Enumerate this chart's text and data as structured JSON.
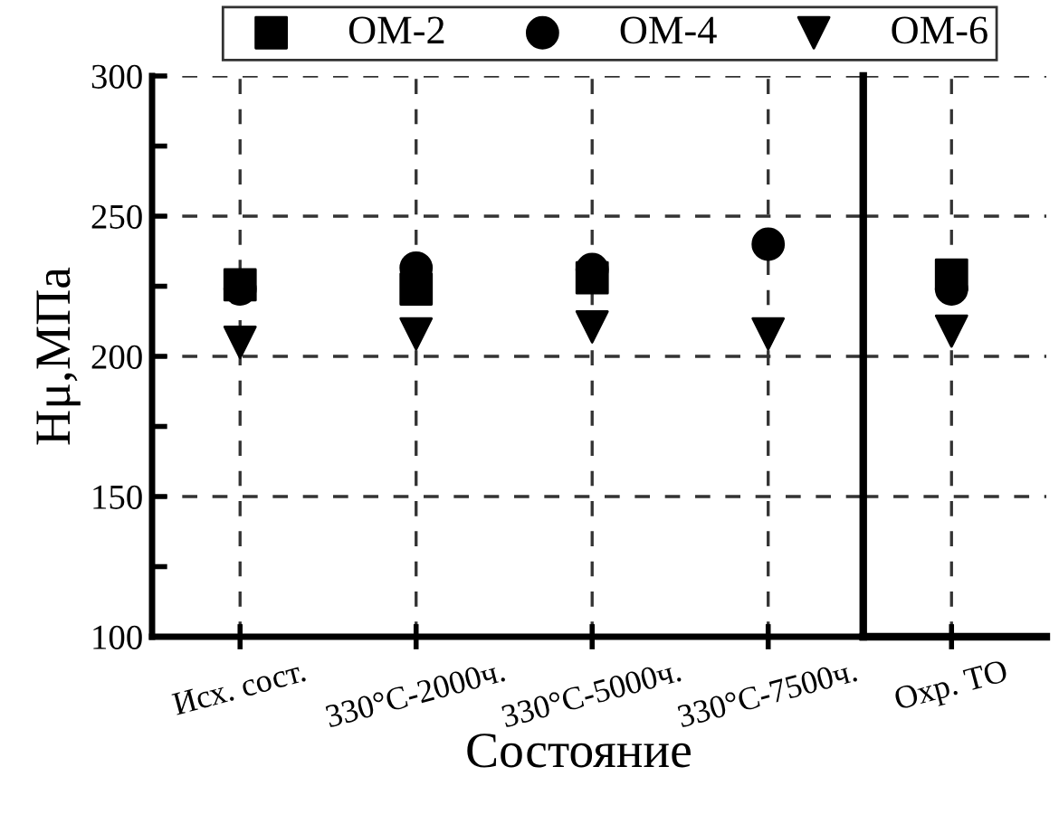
{
  "chart_data": [
    {
      "type": "scatter",
      "xlabel": "Состояние",
      "ylabel": "Hμ,МПа",
      "categories": [
        "Исх. сост.",
        "330°C-2000ч.",
        "330°C-5000ч.",
        "330°C-7500ч."
      ],
      "ylim": [
        100,
        300
      ],
      "yticks": [
        100,
        {
          "value": 125,
          "label": null
        },
        150,
        {
          "value": 175,
          "label": null
        },
        200,
        {
          "value": 225,
          "label": null
        },
        250,
        {
          "value": 275,
          "label": null
        },
        300
      ],
      "series": [
        {
          "name": "OM-2",
          "color": "#000000",
          "marker": "square",
          "values": [
            225.5,
            224,
            228,
            null
          ]
        },
        {
          "name": "OM-4",
          "color": "#000000",
          "marker": "circle",
          "values": [
            224,
            231.5,
            231,
            240
          ]
        },
        {
          "name": "OM-6",
          "color": "#000000",
          "marker": "triangle",
          "values": [
            205,
            208,
            210.5,
            208
          ]
        }
      ],
      "grid": true,
      "legend": "top"
    },
    {
      "type": "scatter",
      "categories": [
        "Охр. ТО"
      ],
      "ylim": [
        100,
        300
      ],
      "yticks": [
        100,
        150,
        200,
        250,
        300
      ],
      "series": [
        {
          "color": "#000000",
          "marker": "square",
          "values": [
            229
          ]
        },
        {
          "color": "#000000",
          "marker": "circle",
          "values": [
            224
          ]
        },
        {
          "color": "#000000",
          "marker": "triangle",
          "values": [
            209
          ]
        }
      ],
      "grid": true,
      "tick_labels": "x"
    }
  ]
}
